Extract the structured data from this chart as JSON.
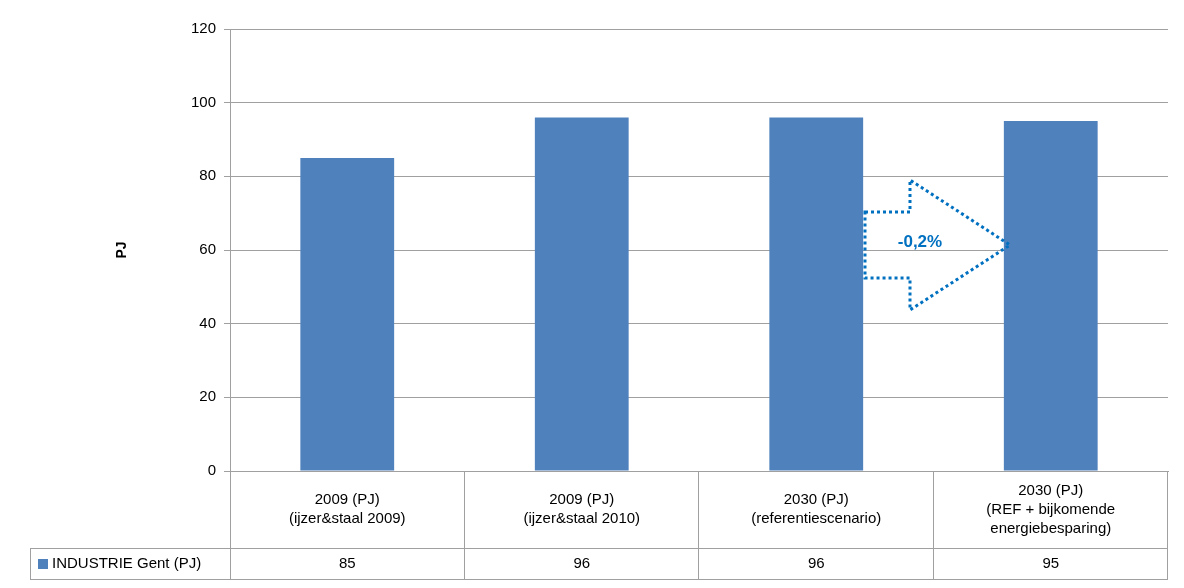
{
  "chart_data": {
    "type": "bar",
    "ylabel": "PJ",
    "categories": [
      "2009 (PJ)\n(ijzer&staal 2009)",
      "2009 (PJ)\n(ijzer&staal 2010)",
      "2030 (PJ)\n(referentiescenario)",
      "2030 (PJ)\n(REF + bijkomende\nenergiebesparing)"
    ],
    "series": [
      {
        "name": "INDUSTRIE Gent (PJ)",
        "color": "#4f81bd",
        "values": [
          85,
          96,
          96,
          95
        ]
      }
    ],
    "ylim": [
      0,
      120
    ],
    "yticks": [
      0,
      20,
      40,
      60,
      80,
      100,
      120
    ],
    "grid": "y",
    "legend": "bottom",
    "data_labels": true,
    "annotations": [
      "-0,2%"
    ]
  }
}
